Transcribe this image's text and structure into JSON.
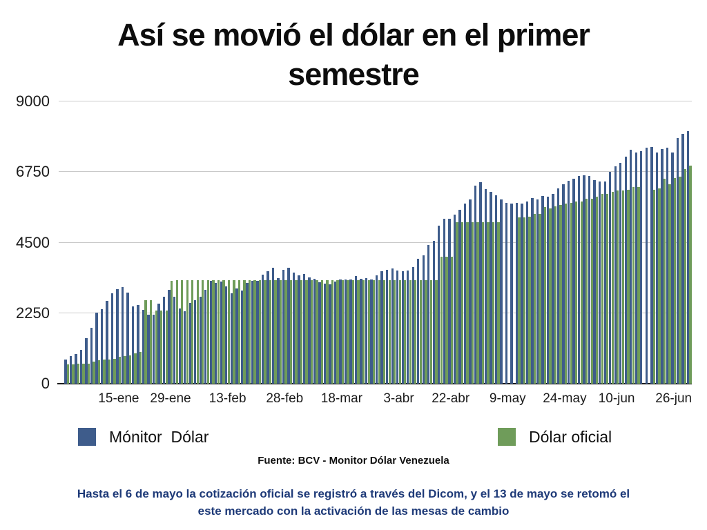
{
  "title": {
    "line1": "Así se movió el dólar en el primer",
    "line2": "semestre"
  },
  "legend": [
    {
      "label": "Mónitor  Dólar",
      "color": "#3e5c8b"
    },
    {
      "label": "Dólar oficial",
      "color": "#6f9c5a"
    }
  ],
  "source_note": "Fuente: BCV - Monitor Dólar Venezuela",
  "footnote": {
    "line1": "Hasta el 6 de mayo la cotización oficial se registró a través del Dicom, y el 13 de mayo se retomó el",
    "line2": "este mercado con la activación de las mesas de cambio"
  },
  "colors": {
    "monitor_blue": "#3e5c8b",
    "oficial_green": "#6f9c5a",
    "gridline": "#c9c9c9",
    "axis": "#1c1c1c",
    "footnote_navy": "#1e3a78"
  },
  "chart_data": {
    "type": "bar",
    "title": "Así se movió el dólar en el primer semestre",
    "xlabel": "",
    "ylabel": "",
    "ylim": [
      0,
      9000
    ],
    "y_ticks": [
      0,
      2250,
      4500,
      6750,
      9000
    ],
    "grid": true,
    "legend_position": "bottom",
    "x_tick_labels": [
      {
        "label": "15-ene",
        "index": 10
      },
      {
        "label": "29-ene",
        "index": 20
      },
      {
        "label": "13-feb",
        "index": 31
      },
      {
        "label": "28-feb",
        "index": 42
      },
      {
        "label": "18-mar",
        "index": 53
      },
      {
        "label": "3-abr",
        "index": 64
      },
      {
        "label": "22-abr",
        "index": 74
      },
      {
        "label": "9-may",
        "index": 85
      },
      {
        "label": "24-may",
        "index": 96
      },
      {
        "label": "10-jun",
        "index": 106
      },
      {
        "label": "26-jun",
        "index": 117
      }
    ],
    "series": [
      {
        "name": "Mónitor Dólar",
        "color": "#3e5c8b",
        "values": [
          780,
          890,
          950,
          1080,
          1460,
          1790,
          2270,
          2380,
          2650,
          2890,
          3020,
          3080,
          2910,
          2470,
          2510,
          2350,
          2210,
          2210,
          2550,
          2770,
          2990,
          2770,
          2400,
          2320,
          2580,
          2660,
          2770,
          2990,
          3290,
          3220,
          3250,
          3110,
          2880,
          3030,
          2960,
          3220,
          3290,
          3290,
          3480,
          3590,
          3700,
          3370,
          3630,
          3690,
          3540,
          3450,
          3490,
          3390,
          3350,
          3240,
          3200,
          3165,
          3255,
          3315,
          3330,
          3315,
          3425,
          3355,
          3375,
          3330,
          3465,
          3580,
          3630,
          3675,
          3600,
          3580,
          3605,
          3730,
          3990,
          4100,
          4420,
          4550,
          5040,
          5265,
          5250,
          5385,
          5550,
          5740,
          5885,
          6320,
          6425,
          6210,
          6110,
          6000,
          5885,
          5775,
          5740,
          5760,
          5740,
          5815,
          5925,
          5885,
          5980,
          5960,
          6050,
          6220,
          6350,
          6480,
          6525,
          6620,
          6640,
          6620,
          6490,
          6450,
          6450,
          6750,
          6930,
          7040,
          7230,
          7450,
          7380,
          7415,
          7525,
          7540,
          7377,
          7473,
          7526,
          7377,
          7845,
          7970,
          8045
        ]
      },
      {
        "name": "Dólar oficial",
        "color": "#6f9c5a",
        "values": [
          620,
          620,
          630,
          630,
          640,
          700,
          745,
          760,
          780,
          800,
          855,
          870,
          905,
          960,
          1010,
          2660,
          2660,
          2330,
          2330,
          2340,
          3290,
          3300,
          3300,
          3300,
          3300,
          3300,
          3300,
          3300,
          3300,
          3300,
          3300,
          3300,
          3300,
          3300,
          3300,
          3300,
          3300,
          3300,
          3300,
          3300,
          3300,
          3300,
          3300,
          3300,
          3300,
          3300,
          3300,
          3300,
          3300,
          3300,
          3300,
          3300,
          3300,
          3300,
          3300,
          3300,
          3300,
          3300,
          3300,
          3300,
          3300,
          3300,
          3300,
          3300,
          3300,
          3300,
          3300,
          3300,
          3300,
          3300,
          3300,
          3300,
          4060,
          4060,
          4060,
          5140,
          5140,
          5140,
          5140,
          5140,
          5140,
          5140,
          5140,
          5140,
          null,
          null,
          null,
          5295,
          5300,
          5320,
          5405,
          5420,
          5627,
          5590,
          5665,
          5700,
          5740,
          5775,
          5820,
          5820,
          5900,
          5900,
          5960,
          6045,
          6045,
          6120,
          6155,
          6155,
          6190,
          6270,
          6270,
          null,
          null,
          6190,
          6230,
          6525,
          6360,
          6565,
          6600,
          6845,
          6955
        ]
      }
    ]
  }
}
